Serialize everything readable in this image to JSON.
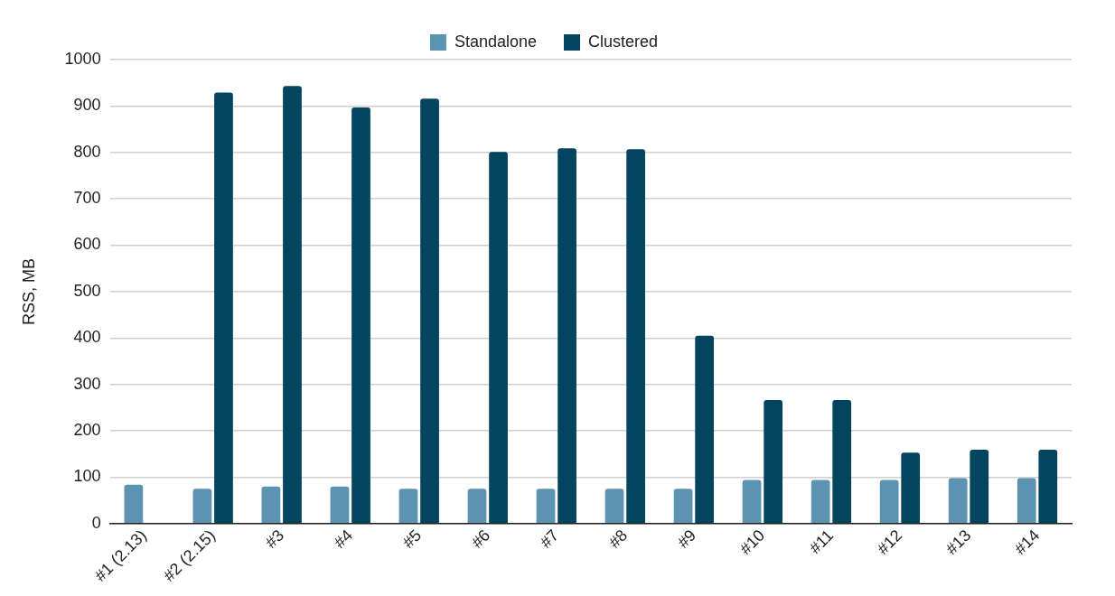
{
  "chart_data": {
    "type": "bar",
    "ylabel": "RSS, MB",
    "categories": [
      "#1 (2.13)",
      "#2 (2.15)",
      "#3",
      "#4",
      "#5",
      "#6",
      "#7",
      "#8",
      "#9",
      "#10",
      "#11",
      "#12",
      "#13",
      "#14"
    ],
    "series": [
      {
        "name": "Standalone",
        "color": "#5b93b0",
        "values": [
          84,
          75,
          80,
          80,
          75,
          75,
          75,
          75,
          75,
          94,
          94,
          94,
          98,
          98
        ]
      },
      {
        "name": "Clustered",
        "color": "#03455f",
        "values": [
          null,
          929,
          943,
          897,
          916,
          801,
          809,
          807,
          405,
          266,
          266,
          153,
          159,
          159
        ]
      }
    ],
    "ylim": [
      0,
      1000
    ],
    "yticks": [
      0,
      100,
      200,
      300,
      400,
      500,
      600,
      700,
      800,
      900,
      1000
    ],
    "grid": "y",
    "legend": "top"
  }
}
